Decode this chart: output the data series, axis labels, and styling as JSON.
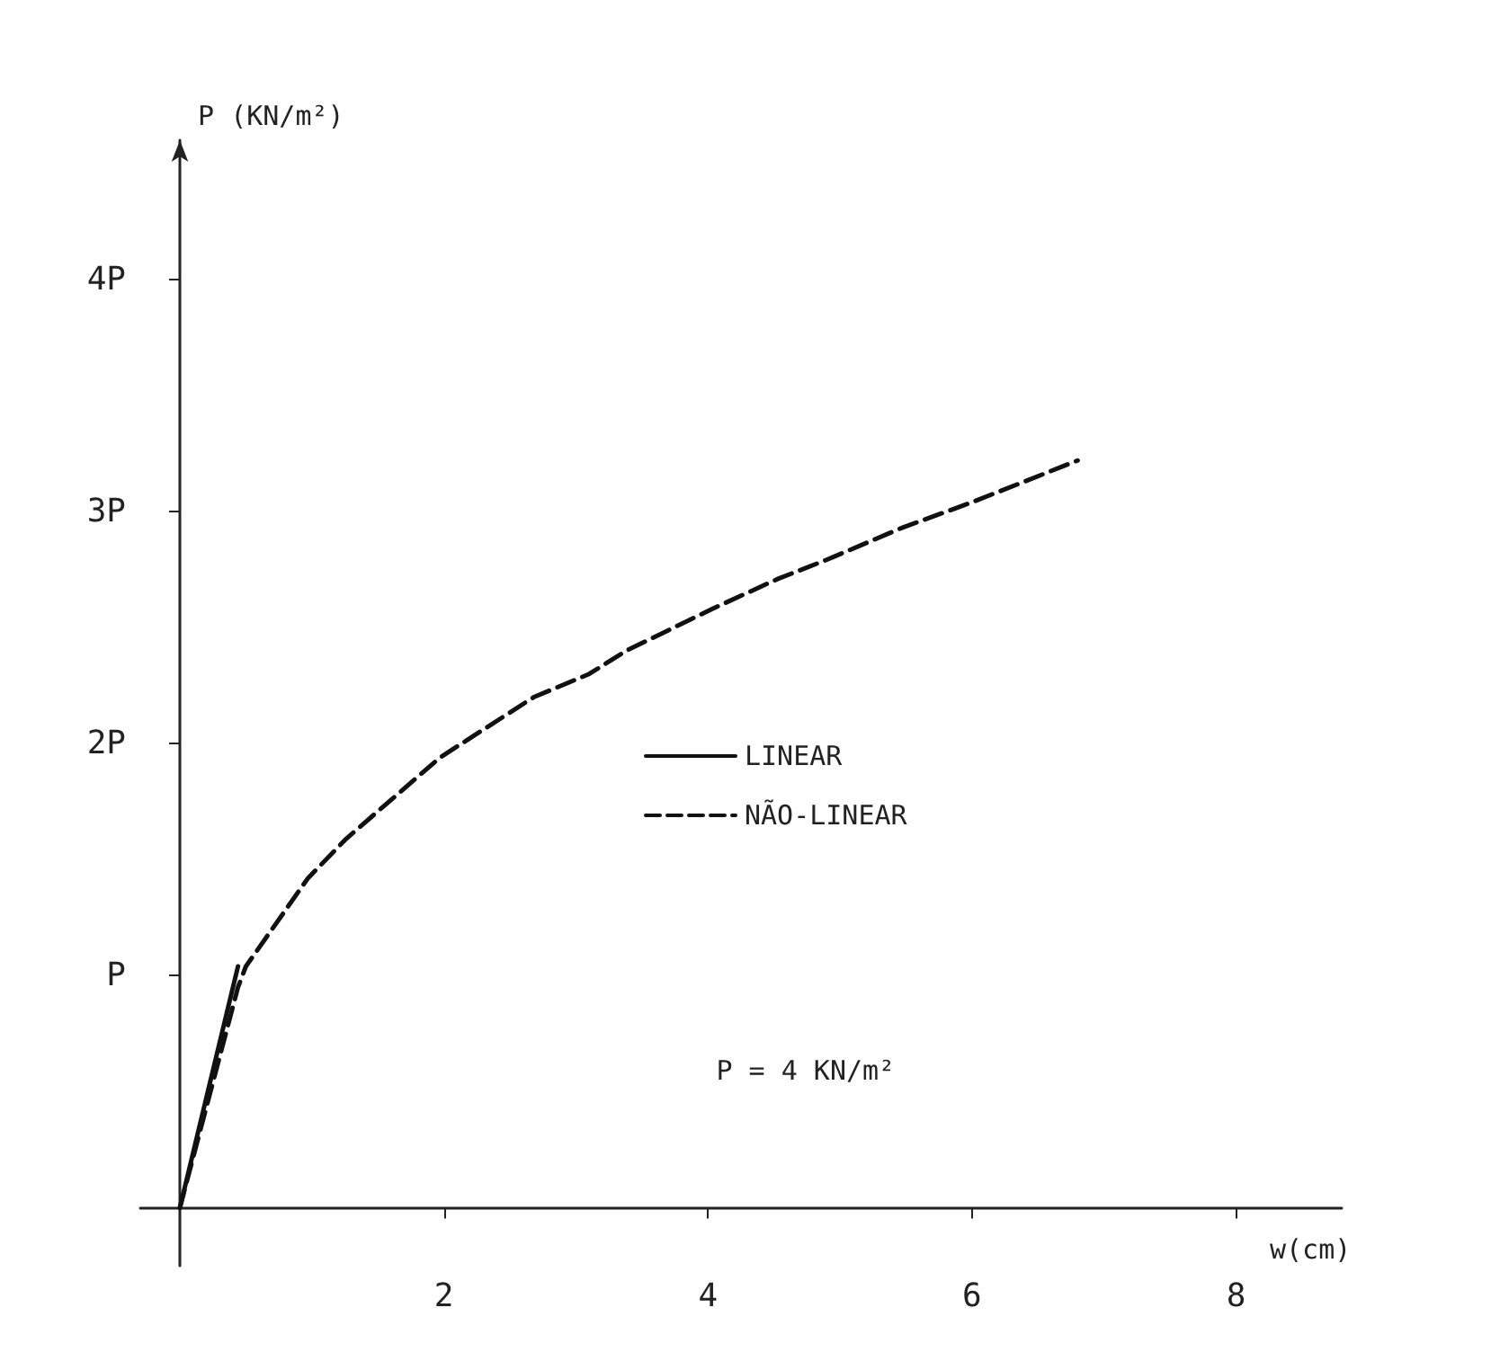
{
  "chart_data": {
    "type": "line",
    "xlabel": "w(cm)",
    "ylabel": "P (KN/m²)",
    "annotations": [
      "P = 4 KN/m²"
    ],
    "series": [
      {
        "name": "LINEAR",
        "color": "#111111",
        "line_style": "solid",
        "x": [
          0,
          0.44
        ],
        "values": [
          0,
          1.04
        ]
      },
      {
        "name": "NÃO-LINEAR",
        "color": "#111111",
        "line_style": "dashed",
        "x": [
          0,
          0.44,
          0.5,
          0.97,
          1.26,
          1.97,
          2.68,
          3.1,
          3.38,
          4.03,
          4.53,
          4.89,
          5.47,
          6.0,
          6.8
        ],
        "values": [
          0,
          0.95,
          1.04,
          1.42,
          1.59,
          1.94,
          2.2,
          2.3,
          2.4,
          2.58,
          2.71,
          2.79,
          2.93,
          3.04,
          3.22
        ]
      }
    ],
    "xlim": [
      -0.3,
      8.8
    ],
    "xticks": [
      2,
      4,
      6,
      8
    ],
    "ylim": [
      -0.25,
      4.6
    ],
    "yticks": [
      {
        "value": 1,
        "label": "P"
      },
      {
        "value": 2,
        "label": "2P"
      },
      {
        "value": 3,
        "label": "3P"
      },
      {
        "value": 4,
        "label": "4P"
      }
    ],
    "grid": false,
    "legend": "center",
    "marker": "none"
  }
}
